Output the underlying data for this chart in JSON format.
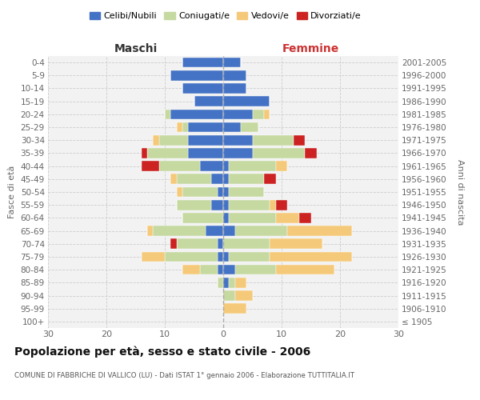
{
  "age_groups": [
    "100+",
    "95-99",
    "90-94",
    "85-89",
    "80-84",
    "75-79",
    "70-74",
    "65-69",
    "60-64",
    "55-59",
    "50-54",
    "45-49",
    "40-44",
    "35-39",
    "30-34",
    "25-29",
    "20-24",
    "15-19",
    "10-14",
    "5-9",
    "0-4"
  ],
  "birth_years": [
    "≤ 1905",
    "1906-1910",
    "1911-1915",
    "1916-1920",
    "1921-1925",
    "1926-1930",
    "1931-1935",
    "1936-1940",
    "1941-1945",
    "1946-1950",
    "1951-1955",
    "1956-1960",
    "1961-1965",
    "1966-1970",
    "1971-1975",
    "1976-1980",
    "1981-1985",
    "1986-1990",
    "1991-1995",
    "1996-2000",
    "2001-2005"
  ],
  "maschi": {
    "celibi": [
      0,
      0,
      0,
      0,
      1,
      1,
      1,
      3,
      0,
      2,
      1,
      2,
      4,
      6,
      6,
      6,
      9,
      5,
      7,
      9,
      7
    ],
    "coniugati": [
      0,
      0,
      0,
      1,
      3,
      9,
      7,
      9,
      7,
      6,
      6,
      6,
      7,
      7,
      5,
      1,
      1,
      0,
      0,
      0,
      0
    ],
    "vedovi": [
      0,
      0,
      0,
      0,
      3,
      4,
      0,
      1,
      0,
      0,
      1,
      1,
      0,
      0,
      1,
      1,
      0,
      0,
      0,
      0,
      0
    ],
    "divorziati": [
      0,
      0,
      0,
      0,
      0,
      0,
      1,
      0,
      0,
      0,
      0,
      0,
      3,
      1,
      0,
      0,
      0,
      0,
      0,
      0,
      0
    ]
  },
  "femmine": {
    "celibi": [
      0,
      0,
      0,
      1,
      2,
      1,
      0,
      2,
      1,
      1,
      1,
      1,
      1,
      5,
      5,
      3,
      5,
      8,
      4,
      4,
      3
    ],
    "coniugati": [
      0,
      0,
      2,
      1,
      7,
      7,
      8,
      9,
      8,
      7,
      6,
      6,
      8,
      9,
      7,
      3,
      2,
      0,
      0,
      0,
      0
    ],
    "vedovi": [
      0,
      4,
      3,
      2,
      10,
      14,
      9,
      11,
      4,
      1,
      0,
      0,
      2,
      0,
      0,
      0,
      1,
      0,
      0,
      0,
      0
    ],
    "divorziati": [
      0,
      0,
      0,
      0,
      0,
      0,
      0,
      0,
      2,
      2,
      0,
      2,
      0,
      2,
      2,
      0,
      0,
      0,
      0,
      0,
      0
    ]
  },
  "colors": {
    "celibi": "#4472c4",
    "coniugati": "#c5d9a0",
    "vedovi": "#f5c97a",
    "divorziati": "#cc2222"
  },
  "xlim": 30,
  "title": "Popolazione per età, sesso e stato civile - 2006",
  "subtitle": "COMUNE DI FABBRICHE DI VALLICO (LU) - Dati ISTAT 1° gennaio 2006 - Elaborazione TUTTITALIA.IT",
  "ylabel_left": "Fasce di età",
  "ylabel_right": "Anni di nascita",
  "maschi_label": "Maschi",
  "femmine_label": "Femmine",
  "legend_labels": [
    "Celibi/Nubili",
    "Coniugati/e",
    "Vedovi/e",
    "Divorziati/e"
  ],
  "bg_color": "#ffffff",
  "grid_color": "#cccccc"
}
